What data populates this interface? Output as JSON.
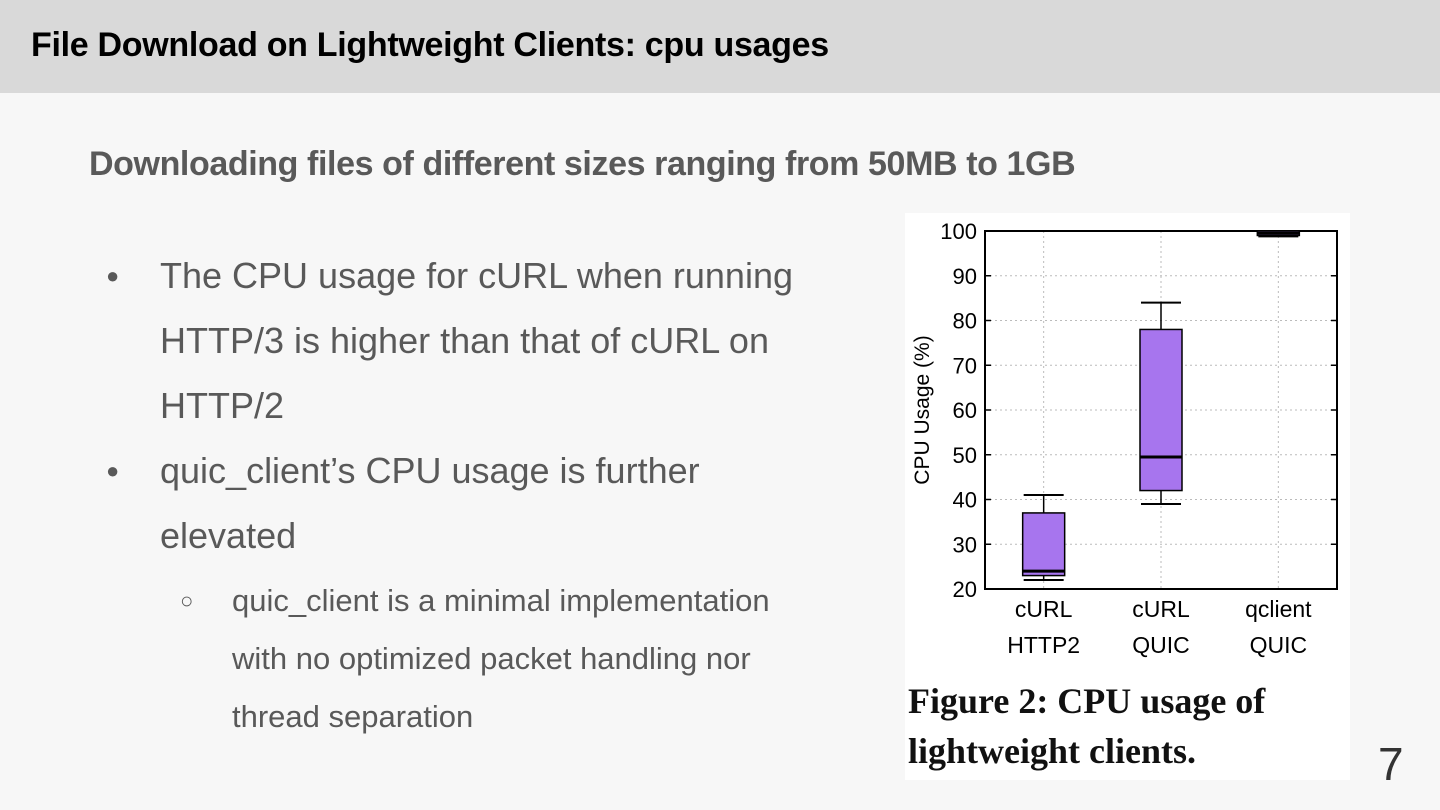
{
  "header": {
    "title": "File Download on Lightweight Clients: cpu usages"
  },
  "subtitle": "Downloading files of different sizes ranging from 50MB to 1GB",
  "bullets": [
    {
      "text": "The CPU usage for cURL when running HTTP/3 is higher than that of cURL on HTTP/2"
    },
    {
      "text": "quic_client’s CPU usage is further elevated"
    }
  ],
  "sub_bullets": [
    {
      "text": "quic_client is a minimal implementation with no optimized packet handling nor thread separation"
    }
  ],
  "bullet_glyph": "●",
  "sub_bullet_glyph": "○",
  "figure": {
    "caption": "Figure 2: CPU usage of lightweight clients."
  },
  "page_number": "7",
  "chart_data": {
    "type": "box",
    "ylabel": "CPU Usage (%)",
    "ylim": [
      20,
      100
    ],
    "yticks": [
      20,
      30,
      40,
      50,
      60,
      70,
      80,
      90,
      100
    ],
    "grid": true,
    "box_color": "#a775ee",
    "categories": [
      {
        "line1": "cURL",
        "line2": "HTTP2"
      },
      {
        "line1": "cURL",
        "line2": "QUIC"
      },
      {
        "line1": "qclient",
        "line2": "QUIC"
      }
    ],
    "boxes": [
      {
        "whisker_low": 22,
        "q1": 23,
        "median": 24,
        "q3": 37,
        "whisker_high": 41
      },
      {
        "whisker_low": 39,
        "q1": 42,
        "median": 49.5,
        "q3": 78,
        "whisker_high": 84
      },
      {
        "whisker_low": 98.8,
        "q1": 99,
        "median": 99.5,
        "q3": 100,
        "whisker_high": 100
      }
    ]
  }
}
